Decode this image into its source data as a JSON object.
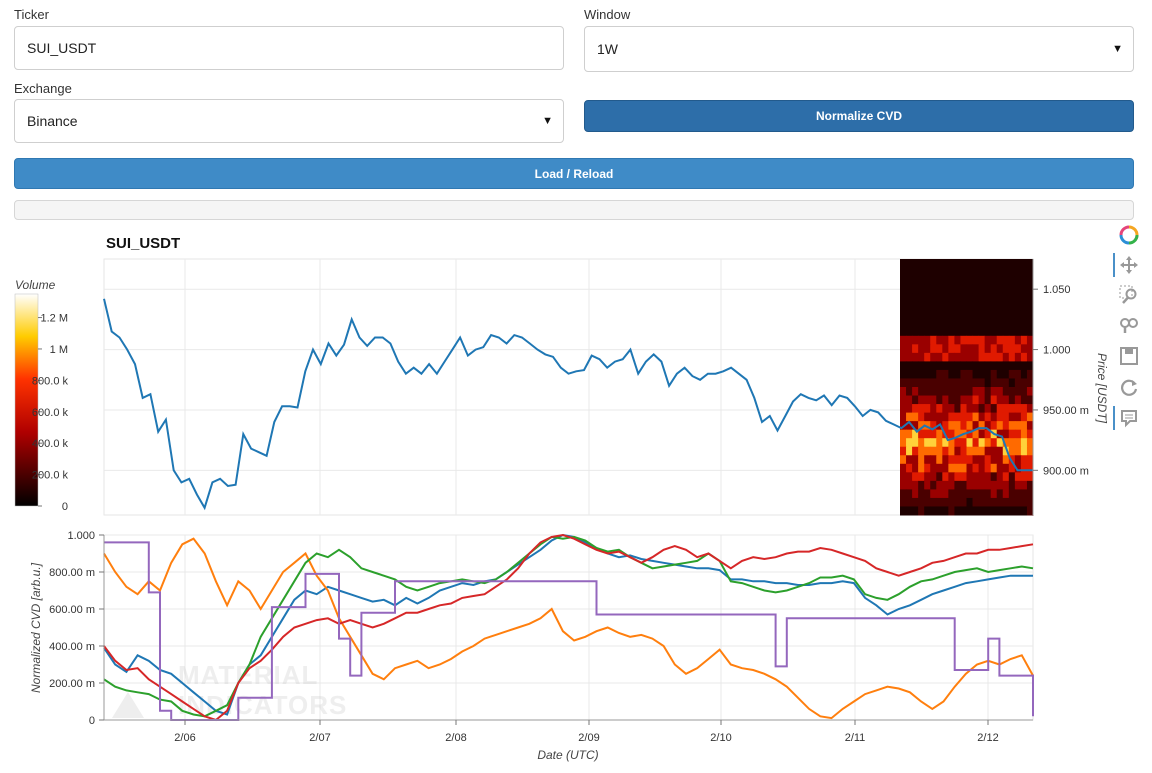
{
  "form": {
    "ticker_label": "Ticker",
    "ticker_value": "SUI_USDT",
    "window_label": "Window",
    "window_value": "1W",
    "exchange_label": "Exchange",
    "exchange_value": "Binance",
    "normalize_label": "Normalize CVD",
    "load_label": "Load / Reload",
    "progress_fraction": 0
  },
  "toolbar": {
    "tools": [
      "bokeh-logo-icon",
      "pan-icon",
      "box-zoom-icon",
      "wheel-zoom-icon",
      "save-icon",
      "reset-icon",
      "hover-icon"
    ]
  },
  "chart_data": [
    {
      "type": "line",
      "title": "SUI_USDT",
      "ylabel": "Price [USDT]",
      "x_range": [
        "2/05 09:00",
        "2/12 07:00"
      ],
      "ylim": [
        0.863,
        1.075
      ],
      "yticks": [
        "1.050",
        "1.000",
        "950.00 m",
        "900.00 m"
      ],
      "grid": true,
      "series": [
        {
          "values": [
            1.042,
            1.015,
            1.01,
            1.0,
            0.988,
            0.96,
            0.963,
            0.932,
            0.942,
            0.9,
            0.89,
            0.893,
            0.88,
            0.869,
            0.89,
            0.893,
            0.887,
            0.888,
            0.93,
            0.918,
            0.915,
            0.912,
            0.94,
            0.953,
            0.953,
            0.952,
            0.982,
            1.0,
            0.988,
            1.005,
            0.995,
            1.004,
            1.025,
            1.01,
            1.003,
            1.01,
            1.01,
            1.005,
            0.99,
            0.98,
            0.985,
            0.98,
            0.988,
            0.98,
            0.99,
            1.0,
            1.01,
            0.995,
            1.0,
            1.002,
            1.012,
            1.01,
            1.005,
            1.012,
            1.01,
            1.005,
            1.0,
            0.996,
            0.994,
            0.985,
            0.98,
            0.982,
            0.983,
            0.995,
            0.992,
            0.985,
            0.99,
            0.992,
            1.0,
            0.98,
            0.99,
            0.996,
            0.99,
            0.97,
            0.98,
            0.985,
            0.978,
            0.975,
            0.98,
            0.98,
            0.982,
            0.985,
            0.98,
            0.975,
            0.96,
            0.94,
            0.945,
            0.933,
            0.945,
            0.957,
            0.963,
            0.96,
            0.958,
            0.962,
            0.954,
            0.962,
            0.96,
            0.953,
            0.945,
            0.95,
            0.948,
            0.941,
            0.938,
            0.935,
            0.94,
            0.932,
            0.937,
            0.934,
            0.938,
            0.925,
            0.927,
            0.93,
            0.932,
            0.935,
            0.935,
            0.93,
            0.928,
            0.91,
            0.9,
            0.9,
            0.9
          ]
        }
      ],
      "volume_profile": {
        "label": "Volume",
        "ticks": [
          "1.2 M",
          "1 M",
          "800.0 k",
          "600.0 k",
          "400.0 k",
          "200.0 k",
          "0"
        ],
        "max": 1350000
      }
    },
    {
      "type": "line",
      "ylabel": "Normalized CVD [arb.u.]",
      "xlabel": "Date (UTC)",
      "xticks": [
        "2/06",
        "2/07",
        "2/08",
        "2/09",
        "2/10",
        "2/11",
        "2/12"
      ],
      "yticks": [
        "1.000",
        "800.00 m",
        "600.00 m",
        "400.00 m",
        "200.00 m",
        "0"
      ],
      "ylim": [
        0,
        1
      ],
      "grid": true,
      "colors": [
        "#1f77b4",
        "#ff7f0e",
        "#2ca02c",
        "#d62728",
        "#9467bd"
      ],
      "series": [
        {
          "values": [
            0.39,
            0.3,
            0.26,
            0.35,
            0.32,
            0.27,
            0.25,
            0.2,
            0.15,
            0.1,
            0.05,
            0.03,
            0.2,
            0.3,
            0.35,
            0.45,
            0.55,
            0.65,
            0.7,
            0.68,
            0.72,
            0.7,
            0.68,
            0.66,
            0.64,
            0.65,
            0.62,
            0.66,
            0.63,
            0.66,
            0.7,
            0.72,
            0.74,
            0.73,
            0.75,
            0.76,
            0.8,
            0.84,
            0.88,
            0.92,
            0.97,
            1.0,
            0.99,
            0.96,
            0.93,
            0.9,
            0.88,
            0.89,
            0.87,
            0.86,
            0.85,
            0.84,
            0.83,
            0.82,
            0.82,
            0.81,
            0.76,
            0.76,
            0.75,
            0.75,
            0.74,
            0.74,
            0.73,
            0.73,
            0.74,
            0.74,
            0.75,
            0.74,
            0.66,
            0.62,
            0.57,
            0.6,
            0.62,
            0.65,
            0.68,
            0.7,
            0.72,
            0.74,
            0.75,
            0.76,
            0.77,
            0.78,
            0.78,
            0.78
          ]
        },
        {
          "values": [
            0.9,
            0.8,
            0.72,
            0.68,
            0.75,
            0.7,
            0.85,
            0.95,
            0.98,
            0.9,
            0.75,
            0.62,
            0.75,
            0.7,
            0.6,
            0.7,
            0.8,
            0.85,
            0.9,
            0.78,
            0.7,
            0.55,
            0.45,
            0.35,
            0.25,
            0.22,
            0.28,
            0.3,
            0.32,
            0.28,
            0.3,
            0.33,
            0.37,
            0.4,
            0.44,
            0.46,
            0.48,
            0.5,
            0.52,
            0.55,
            0.6,
            0.48,
            0.43,
            0.45,
            0.48,
            0.5,
            0.47,
            0.45,
            0.46,
            0.44,
            0.4,
            0.3,
            0.25,
            0.28,
            0.33,
            0.38,
            0.3,
            0.28,
            0.27,
            0.25,
            0.22,
            0.18,
            0.12,
            0.06,
            0.02,
            0.01,
            0.06,
            0.1,
            0.14,
            0.16,
            0.18,
            0.17,
            0.15,
            0.1,
            0.06,
            0.1,
            0.18,
            0.25,
            0.3,
            0.32,
            0.3,
            0.33,
            0.35,
            0.24
          ]
        },
        {
          "values": [
            0.22,
            0.18,
            0.16,
            0.15,
            0.14,
            0.11,
            0.1,
            0.05,
            0.03,
            0.02,
            0.05,
            0.08,
            0.2,
            0.3,
            0.45,
            0.55,
            0.65,
            0.75,
            0.85,
            0.9,
            0.88,
            0.92,
            0.88,
            0.82,
            0.8,
            0.78,
            0.76,
            0.72,
            0.7,
            0.72,
            0.74,
            0.75,
            0.76,
            0.75,
            0.74,
            0.76,
            0.8,
            0.85,
            0.9,
            0.95,
            0.99,
            0.98,
            0.99,
            0.97,
            0.93,
            0.91,
            0.92,
            0.88,
            0.85,
            0.82,
            0.83,
            0.84,
            0.85,
            0.86,
            0.9,
            0.86,
            0.75,
            0.74,
            0.72,
            0.7,
            0.69,
            0.7,
            0.72,
            0.74,
            0.77,
            0.77,
            0.78,
            0.76,
            0.68,
            0.66,
            0.65,
            0.68,
            0.72,
            0.75,
            0.76,
            0.78,
            0.8,
            0.81,
            0.82,
            0.8,
            0.81,
            0.82,
            0.83,
            0.82
          ]
        },
        {
          "values": [
            0.4,
            0.32,
            0.27,
            0.28,
            0.22,
            0.18,
            0.14,
            0.1,
            0.06,
            0.02,
            0.0,
            0.05,
            0.2,
            0.28,
            0.32,
            0.38,
            0.45,
            0.5,
            0.52,
            0.54,
            0.55,
            0.52,
            0.54,
            0.52,
            0.5,
            0.52,
            0.55,
            0.58,
            0.58,
            0.6,
            0.62,
            0.63,
            0.66,
            0.67,
            0.68,
            0.72,
            0.76,
            0.82,
            0.9,
            0.96,
            0.99,
            1.0,
            0.98,
            0.95,
            0.92,
            0.9,
            0.91,
            0.88,
            0.85,
            0.88,
            0.92,
            0.94,
            0.92,
            0.88,
            0.9,
            0.86,
            0.82,
            0.86,
            0.88,
            0.87,
            0.88,
            0.9,
            0.91,
            0.91,
            0.93,
            0.92,
            0.9,
            0.88,
            0.86,
            0.82,
            0.8,
            0.78,
            0.8,
            0.82,
            0.85,
            0.86,
            0.88,
            0.9,
            0.9,
            0.92,
            0.92,
            0.93,
            0.94,
            0.95
          ]
        },
        {
          "values": [
            0.96,
            0.96,
            0.96,
            0.96,
            0.69,
            0.05,
            0.0,
            0.0,
            0.0,
            0.0,
            0.0,
            0.0,
            0.12,
            0.12,
            0.12,
            0.61,
            0.61,
            0.61,
            0.79,
            0.79,
            0.79,
            0.44,
            0.24,
            0.58,
            0.58,
            0.58,
            0.75,
            0.75,
            0.75,
            0.75,
            0.75,
            0.75,
            0.75,
            0.75,
            0.75,
            0.75,
            0.75,
            0.75,
            0.75,
            0.75,
            0.75,
            0.75,
            0.75,
            0.75,
            0.57,
            0.57,
            0.57,
            0.57,
            0.57,
            0.57,
            0.57,
            0.57,
            0.57,
            0.57,
            0.57,
            0.57,
            0.57,
            0.57,
            0.57,
            0.57,
            0.29,
            0.55,
            0.55,
            0.55,
            0.55,
            0.55,
            0.55,
            0.55,
            0.55,
            0.55,
            0.55,
            0.55,
            0.55,
            0.55,
            0.55,
            0.55,
            0.27,
            0.27,
            0.27,
            0.44,
            0.24,
            0.24,
            0.24,
            0.02
          ]
        }
      ]
    }
  ]
}
